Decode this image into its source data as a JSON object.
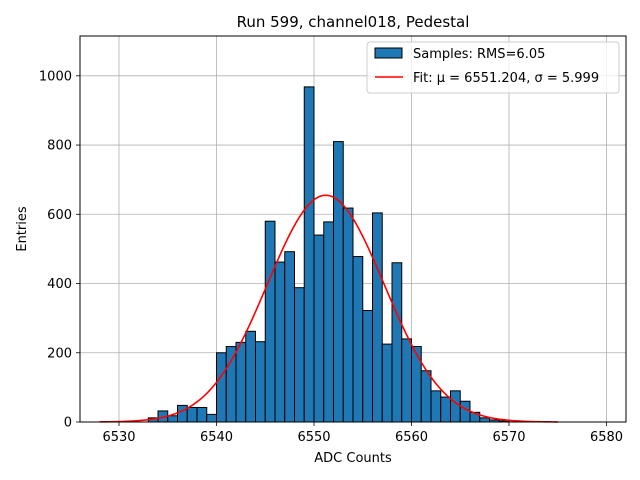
{
  "chart_data": {
    "type": "histogram",
    "title": "Run 599, channel018, Pedestal",
    "xlabel": "ADC Counts",
    "ylabel": "Entries",
    "xlim": [
      6526,
      6582
    ],
    "ylim": [
      0,
      1115
    ],
    "xticks": [
      6530,
      6540,
      6550,
      6560,
      6570,
      6580
    ],
    "yticks": [
      0,
      200,
      400,
      600,
      800,
      1000
    ],
    "grid": true,
    "legend_position": "upper right",
    "histogram": {
      "name": "Samples: RMS=6.05",
      "color": "#1f77b4",
      "edge_color": "#000000",
      "bin_width": 1,
      "bin_lefts": [
        6533,
        6534,
        6535,
        6536,
        6537,
        6538,
        6539,
        6540,
        6541,
        6542,
        6543,
        6544,
        6545,
        6546,
        6547,
        6548,
        6549,
        6550,
        6551,
        6552,
        6553,
        6554,
        6555,
        6556,
        6557,
        6558,
        6559,
        6560,
        6561,
        6562,
        6563,
        6564,
        6565,
        6566,
        6567,
        6568,
        6569
      ],
      "counts": [
        12,
        32,
        18,
        48,
        42,
        42,
        22,
        200,
        218,
        230,
        262,
        232,
        580,
        462,
        492,
        388,
        968,
        540,
        578,
        810,
        618,
        478,
        322,
        604,
        225,
        460,
        240,
        218,
        148,
        90,
        72,
        90,
        60,
        28,
        12,
        6,
        3
      ]
    },
    "fit": {
      "name": "Fit: μ = 6551.204, σ = 5.999",
      "color": "#ff0000",
      "mu": 6551.204,
      "sigma": 5.999,
      "amplitude": 655,
      "x_range": [
        6528,
        6575
      ]
    }
  }
}
